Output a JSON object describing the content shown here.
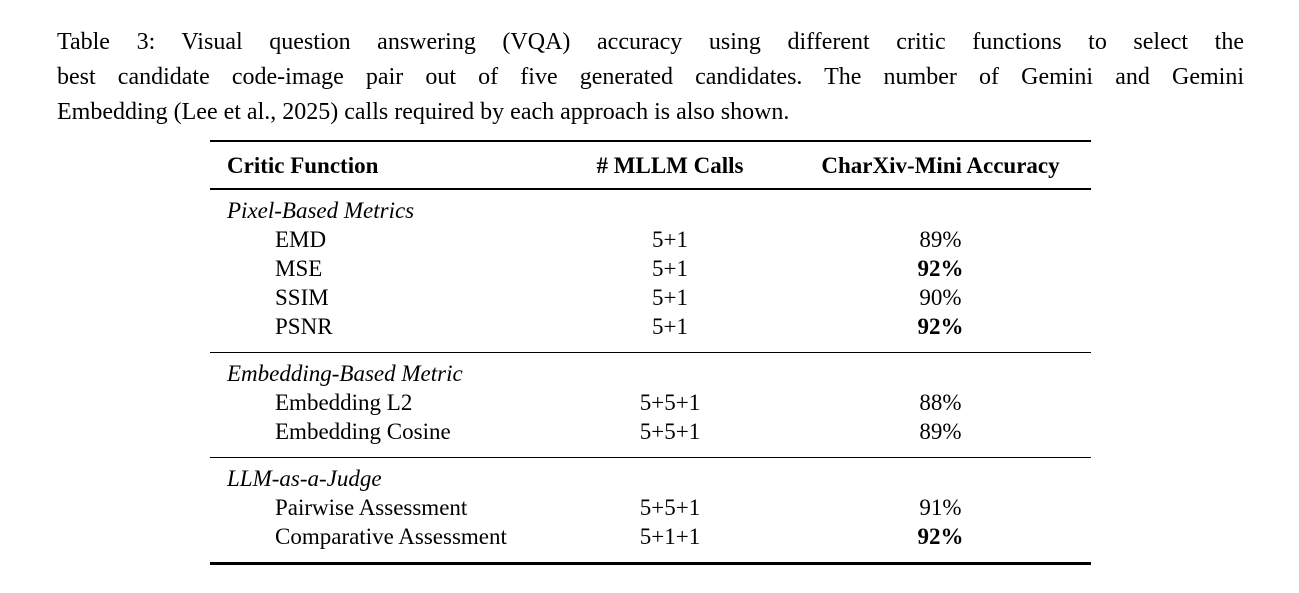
{
  "caption": {
    "lines": [
      "Table 3:  Visual question answering (VQA) accuracy using different critic functions to select the",
      "best candidate code-image pair out of five generated candidates. The number of Gemini and Gemini",
      "Embedding (Lee et al., 2025) calls required by each approach is also shown."
    ]
  },
  "table": {
    "headers": [
      "Critic Function",
      "# MLLM Calls",
      "CharXiv-Mini Accuracy"
    ],
    "sections": [
      {
        "label": "Pixel-Based Metrics",
        "rows": [
          {
            "name": "EMD",
            "calls": "5+1",
            "accuracy": "89%",
            "bold": false
          },
          {
            "name": "MSE",
            "calls": "5+1",
            "accuracy": "92%",
            "bold": true
          },
          {
            "name": "SSIM",
            "calls": "5+1",
            "accuracy": "90%",
            "bold": false
          },
          {
            "name": "PSNR",
            "calls": "5+1",
            "accuracy": "92%",
            "bold": true
          }
        ]
      },
      {
        "label": "Embedding-Based Metric",
        "rows": [
          {
            "name": "Embedding L2",
            "calls": "5+5+1",
            "accuracy": "88%",
            "bold": false
          },
          {
            "name": "Embedding Cosine",
            "calls": "5+5+1",
            "accuracy": "89%",
            "bold": false
          }
        ]
      },
      {
        "label": "LLM-as-a-Judge",
        "rows": [
          {
            "name": "Pairwise Assessment",
            "calls": "5+5+1",
            "accuracy": "91%",
            "bold": false
          },
          {
            "name": "Comparative Assessment",
            "calls": "5+1+1",
            "accuracy": "92%",
            "bold": true
          }
        ]
      }
    ]
  }
}
